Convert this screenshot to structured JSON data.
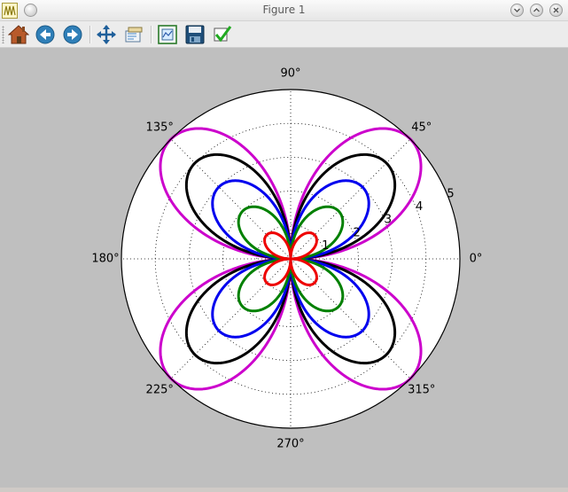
{
  "window": {
    "title": "Figure 1"
  },
  "toolbar": {
    "buttons": [
      {
        "name": "home",
        "icon": "home-icon"
      },
      {
        "name": "back",
        "icon": "back-arrow-icon"
      },
      {
        "name": "forward",
        "icon": "forward-arrow-icon"
      },
      {
        "name": "pan",
        "icon": "move-icon"
      },
      {
        "name": "zoom",
        "icon": "zoom-rect-icon"
      },
      {
        "name": "subplots",
        "icon": "configure-subplots-icon"
      },
      {
        "name": "save",
        "icon": "floppy-disk-icon"
      },
      {
        "name": "edit",
        "icon": "checkmark-icon"
      }
    ]
  },
  "colors": {
    "figure_bg": "#bfbfbf",
    "axes_bg": "#ffffff"
  },
  "chart_data": {
    "type": "line",
    "projection": "polar",
    "r_max": 5,
    "r_ticks": [
      1,
      2,
      3,
      4,
      5
    ],
    "r_tick_labels": [
      "1",
      "2",
      "3",
      "4",
      "5"
    ],
    "r_label_angle_deg": 22.5,
    "theta_ticks_deg": [
      0,
      45,
      90,
      135,
      180,
      225,
      270,
      315
    ],
    "theta_tick_labels": [
      "0°",
      "45°",
      "90°",
      "135°",
      "180°",
      "225°",
      "270°",
      "315°"
    ],
    "grid": true,
    "series": [
      {
        "color": "#cc00cc",
        "amplitude": 5.0,
        "function": "abs(sin(2*theta))"
      },
      {
        "color": "#000000",
        "amplitude": 4.0,
        "function": "abs(sin(2*theta))"
      },
      {
        "color": "#0000ee",
        "amplitude": 3.0,
        "function": "abs(sin(2*theta))"
      },
      {
        "color": "#008000",
        "amplitude": 2.0,
        "function": "abs(sin(2*theta))"
      },
      {
        "color": "#ee0000",
        "amplitude": 1.0,
        "function": "abs(sin(2*theta))"
      }
    ]
  }
}
